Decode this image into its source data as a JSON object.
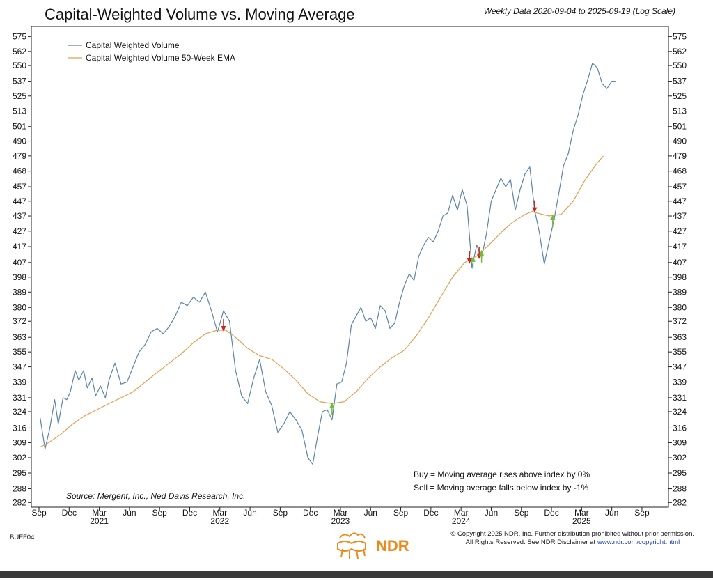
{
  "chart_data": {
    "type": "line",
    "title": "Capital-Weighted Volume vs. Moving Average",
    "subtitle": "Weekly Data 2020-09-04 to 2025-09-19 (Log Scale)",
    "scale": "log",
    "ylim": [
      280,
      582
    ],
    "xlim": [
      2020.67,
      2025.78
    ],
    "y_ticks": [
      282,
      288,
      295,
      302,
      309,
      316,
      324,
      331,
      339,
      347,
      355,
      363,
      372,
      380,
      389,
      398,
      407,
      417,
      427,
      437,
      447,
      457,
      468,
      479,
      490,
      501,
      513,
      525,
      537,
      550,
      562,
      575
    ],
    "y_tick_labels": [
      "282",
      "288",
      "295",
      "302",
      "309",
      "316",
      "324",
      "331",
      "339",
      "347",
      "355",
      "363",
      "372",
      "380",
      "389",
      "398",
      "407",
      "417",
      "427",
      "437",
      "447",
      "457",
      "468",
      "479",
      "490",
      "501",
      "513",
      "525",
      "537",
      "550",
      "562",
      "575"
    ],
    "x_ticks": [
      {
        "label": "Sep",
        "x": 2020.67
      },
      {
        "label": "Dec",
        "x": 2020.92
      },
      {
        "label": "Mar",
        "x": 2021.17
      },
      {
        "label": "Jun",
        "x": 2021.42
      },
      {
        "label": "Sep",
        "x": 2021.67
      },
      {
        "label": "Dec",
        "x": 2021.92
      },
      {
        "label": "Mar",
        "x": 2022.17
      },
      {
        "label": "Jun",
        "x": 2022.42
      },
      {
        "label": "Sep",
        "x": 2022.67
      },
      {
        "label": "Dec",
        "x": 2022.92
      },
      {
        "label": "Mar",
        "x": 2023.17
      },
      {
        "label": "Jun",
        "x": 2023.42
      },
      {
        "label": "Sep",
        "x": 2023.67
      },
      {
        "label": "Dec",
        "x": 2023.92
      },
      {
        "label": "Mar",
        "x": 2024.17
      },
      {
        "label": "Jun",
        "x": 2024.42
      },
      {
        "label": "Sep",
        "x": 2024.67
      },
      {
        "label": "Dec",
        "x": 2024.92
      },
      {
        "label": "Mar",
        "x": 2025.17
      },
      {
        "label": "Jun",
        "x": 2025.42
      },
      {
        "label": "Sep",
        "x": 2025.67
      }
    ],
    "year_labels": [
      {
        "label": "2021",
        "x": 2021.17
      },
      {
        "label": "2022",
        "x": 2022.17
      },
      {
        "label": "2023",
        "x": 2023.17
      },
      {
        "label": "2024",
        "x": 2024.17
      },
      {
        "label": "2025",
        "x": 2025.17
      }
    ],
    "series": [
      {
        "name": "Capital Weighted Volume",
        "color": "#5b84a8",
        "points": [
          [
            2020.68,
            321
          ],
          [
            2020.72,
            306
          ],
          [
            2020.76,
            316
          ],
          [
            2020.8,
            330
          ],
          [
            2020.83,
            318
          ],
          [
            2020.87,
            331
          ],
          [
            2020.9,
            330
          ],
          [
            2020.93,
            334
          ],
          [
            2020.97,
            345
          ],
          [
            2021.0,
            340
          ],
          [
            2021.04,
            345
          ],
          [
            2021.07,
            336
          ],
          [
            2021.11,
            341
          ],
          [
            2021.14,
            332
          ],
          [
            2021.18,
            337
          ],
          [
            2021.22,
            331
          ],
          [
            2021.25,
            340
          ],
          [
            2021.3,
            349
          ],
          [
            2021.35,
            338
          ],
          [
            2021.4,
            339
          ],
          [
            2021.45,
            347
          ],
          [
            2021.5,
            355
          ],
          [
            2021.55,
            359
          ],
          [
            2021.6,
            366
          ],
          [
            2021.65,
            368
          ],
          [
            2021.7,
            365
          ],
          [
            2021.75,
            369
          ],
          [
            2021.8,
            375
          ],
          [
            2021.85,
            383
          ],
          [
            2021.9,
            381
          ],
          [
            2021.95,
            386
          ],
          [
            2022.0,
            383
          ],
          [
            2022.05,
            389
          ],
          [
            2022.1,
            378
          ],
          [
            2022.15,
            366
          ],
          [
            2022.2,
            378
          ],
          [
            2022.25,
            372
          ],
          [
            2022.3,
            345
          ],
          [
            2022.35,
            332
          ],
          [
            2022.4,
            328
          ],
          [
            2022.45,
            341
          ],
          [
            2022.5,
            351
          ],
          [
            2022.55,
            334
          ],
          [
            2022.6,
            327
          ],
          [
            2022.65,
            314
          ],
          [
            2022.7,
            318
          ],
          [
            2022.75,
            324
          ],
          [
            2022.8,
            320
          ],
          [
            2022.85,
            315
          ],
          [
            2022.9,
            302
          ],
          [
            2022.94,
            299
          ],
          [
            2022.98,
            312
          ],
          [
            2023.02,
            324
          ],
          [
            2023.06,
            325
          ],
          [
            2023.1,
            320
          ],
          [
            2023.14,
            338
          ],
          [
            2023.18,
            339
          ],
          [
            2023.22,
            349
          ],
          [
            2023.26,
            370
          ],
          [
            2023.3,
            375
          ],
          [
            2023.34,
            380
          ],
          [
            2023.38,
            372
          ],
          [
            2023.42,
            374
          ],
          [
            2023.46,
            368
          ],
          [
            2023.5,
            381
          ],
          [
            2023.54,
            378
          ],
          [
            2023.58,
            368
          ],
          [
            2023.62,
            371
          ],
          [
            2023.66,
            383
          ],
          [
            2023.7,
            393
          ],
          [
            2023.74,
            400
          ],
          [
            2023.78,
            396
          ],
          [
            2023.82,
            411
          ],
          [
            2023.86,
            418
          ],
          [
            2023.9,
            423
          ],
          [
            2023.94,
            420
          ],
          [
            2023.98,
            427
          ],
          [
            2024.02,
            437
          ],
          [
            2024.06,
            439
          ],
          [
            2024.1,
            451
          ],
          [
            2024.14,
            441
          ],
          [
            2024.18,
            455
          ],
          [
            2024.22,
            444
          ],
          [
            2024.26,
            404
          ],
          [
            2024.3,
            418
          ],
          [
            2024.34,
            410
          ],
          [
            2024.38,
            425
          ],
          [
            2024.42,
            447
          ],
          [
            2024.46,
            455
          ],
          [
            2024.5,
            463
          ],
          [
            2024.54,
            457
          ],
          [
            2024.58,
            462
          ],
          [
            2024.62,
            441
          ],
          [
            2024.66,
            455
          ],
          [
            2024.7,
            466
          ],
          [
            2024.74,
            471
          ],
          [
            2024.78,
            441
          ],
          [
            2024.82,
            426
          ],
          [
            2024.86,
            406
          ],
          [
            2024.9,
            420
          ],
          [
            2024.94,
            434
          ],
          [
            2024.98,
            452
          ],
          [
            2025.02,
            472
          ],
          [
            2025.06,
            481
          ],
          [
            2025.1,
            498
          ],
          [
            2025.14,
            510
          ],
          [
            2025.18,
            526
          ],
          [
            2025.22,
            538
          ],
          [
            2025.26,
            552
          ],
          [
            2025.3,
            548
          ],
          [
            2025.34,
            535
          ],
          [
            2025.38,
            531
          ],
          [
            2025.42,
            537
          ],
          [
            2025.45,
            537
          ]
        ],
        "x_scale": "linear",
        "note": "points are [decimal year, value]"
      },
      {
        "name": "Capital Weighted Volume 50-Week EMA",
        "color": "#e0a050",
        "points": [
          [
            2020.68,
            307
          ],
          [
            2020.75,
            309
          ],
          [
            2020.85,
            313
          ],
          [
            2020.95,
            318
          ],
          [
            2021.05,
            322
          ],
          [
            2021.15,
            325
          ],
          [
            2021.25,
            328
          ],
          [
            2021.35,
            331
          ],
          [
            2021.45,
            334
          ],
          [
            2021.55,
            339
          ],
          [
            2021.65,
            344
          ],
          [
            2021.75,
            349
          ],
          [
            2021.85,
            354
          ],
          [
            2021.95,
            360
          ],
          [
            2022.05,
            365
          ],
          [
            2022.15,
            367
          ],
          [
            2022.22,
            367
          ],
          [
            2022.3,
            363
          ],
          [
            2022.4,
            357
          ],
          [
            2022.5,
            353
          ],
          [
            2022.6,
            351
          ],
          [
            2022.7,
            346
          ],
          [
            2022.8,
            340
          ],
          [
            2022.9,
            333
          ],
          [
            2023.0,
            329
          ],
          [
            2023.1,
            328
          ],
          [
            2023.2,
            329
          ],
          [
            2023.3,
            334
          ],
          [
            2023.4,
            341
          ],
          [
            2023.5,
            347
          ],
          [
            2023.6,
            352
          ],
          [
            2023.7,
            356
          ],
          [
            2023.8,
            364
          ],
          [
            2023.9,
            374
          ],
          [
            2024.0,
            386
          ],
          [
            2024.1,
            398
          ],
          [
            2024.2,
            407
          ],
          [
            2024.3,
            411
          ],
          [
            2024.4,
            418
          ],
          [
            2024.5,
            426
          ],
          [
            2024.6,
            433
          ],
          [
            2024.7,
            438
          ],
          [
            2024.76,
            440
          ],
          [
            2024.8,
            439
          ],
          [
            2024.9,
            437
          ],
          [
            2025.0,
            438
          ],
          [
            2025.1,
            447
          ],
          [
            2025.2,
            462
          ],
          [
            2025.3,
            474
          ],
          [
            2025.35,
            479
          ]
        ]
      }
    ],
    "signals": [
      {
        "type": "sell",
        "x": 2022.2,
        "y": 367
      },
      {
        "type": "buy",
        "x": 2023.1,
        "y": 328
      },
      {
        "type": "sell",
        "x": 2024.24,
        "y": 407
      },
      {
        "type": "buy",
        "x": 2024.27,
        "y": 410
      },
      {
        "type": "sell",
        "x": 2024.32,
        "y": 410
      },
      {
        "type": "buy",
        "x": 2024.34,
        "y": 414
      },
      {
        "type": "sell",
        "x": 2024.78,
        "y": 440
      },
      {
        "type": "buy",
        "x": 2024.93,
        "y": 437
      }
    ],
    "legend": [
      "Capital Weighted Volume",
      "Capital Weighted Volume 50-Week EMA"
    ],
    "legend_position": "top-left",
    "annotations": [
      "Buy = Moving average rises above index by 0%",
      "Sell = Moving average falls below index by -1%"
    ],
    "source": "Source:   Mergent, Inc., Ned Davis Research, Inc."
  },
  "footer": {
    "code": "BUFF04",
    "copyright_line1": "© Copyright 2025 NDR, Inc. Further distribution prohibited without prior permission.",
    "copyright_line2": "All Rights Reserved. See NDR Disclaimer at",
    "link": "www.ndr.com/copyright.html",
    "logo_text": "NDR"
  },
  "colors": {
    "volume_line": "#5b84a8",
    "ema_line": "#e0a050",
    "buy_arrow": "#6cbf3a",
    "sell_arrow": "#cc2222",
    "logo": "#ee8a1c"
  }
}
